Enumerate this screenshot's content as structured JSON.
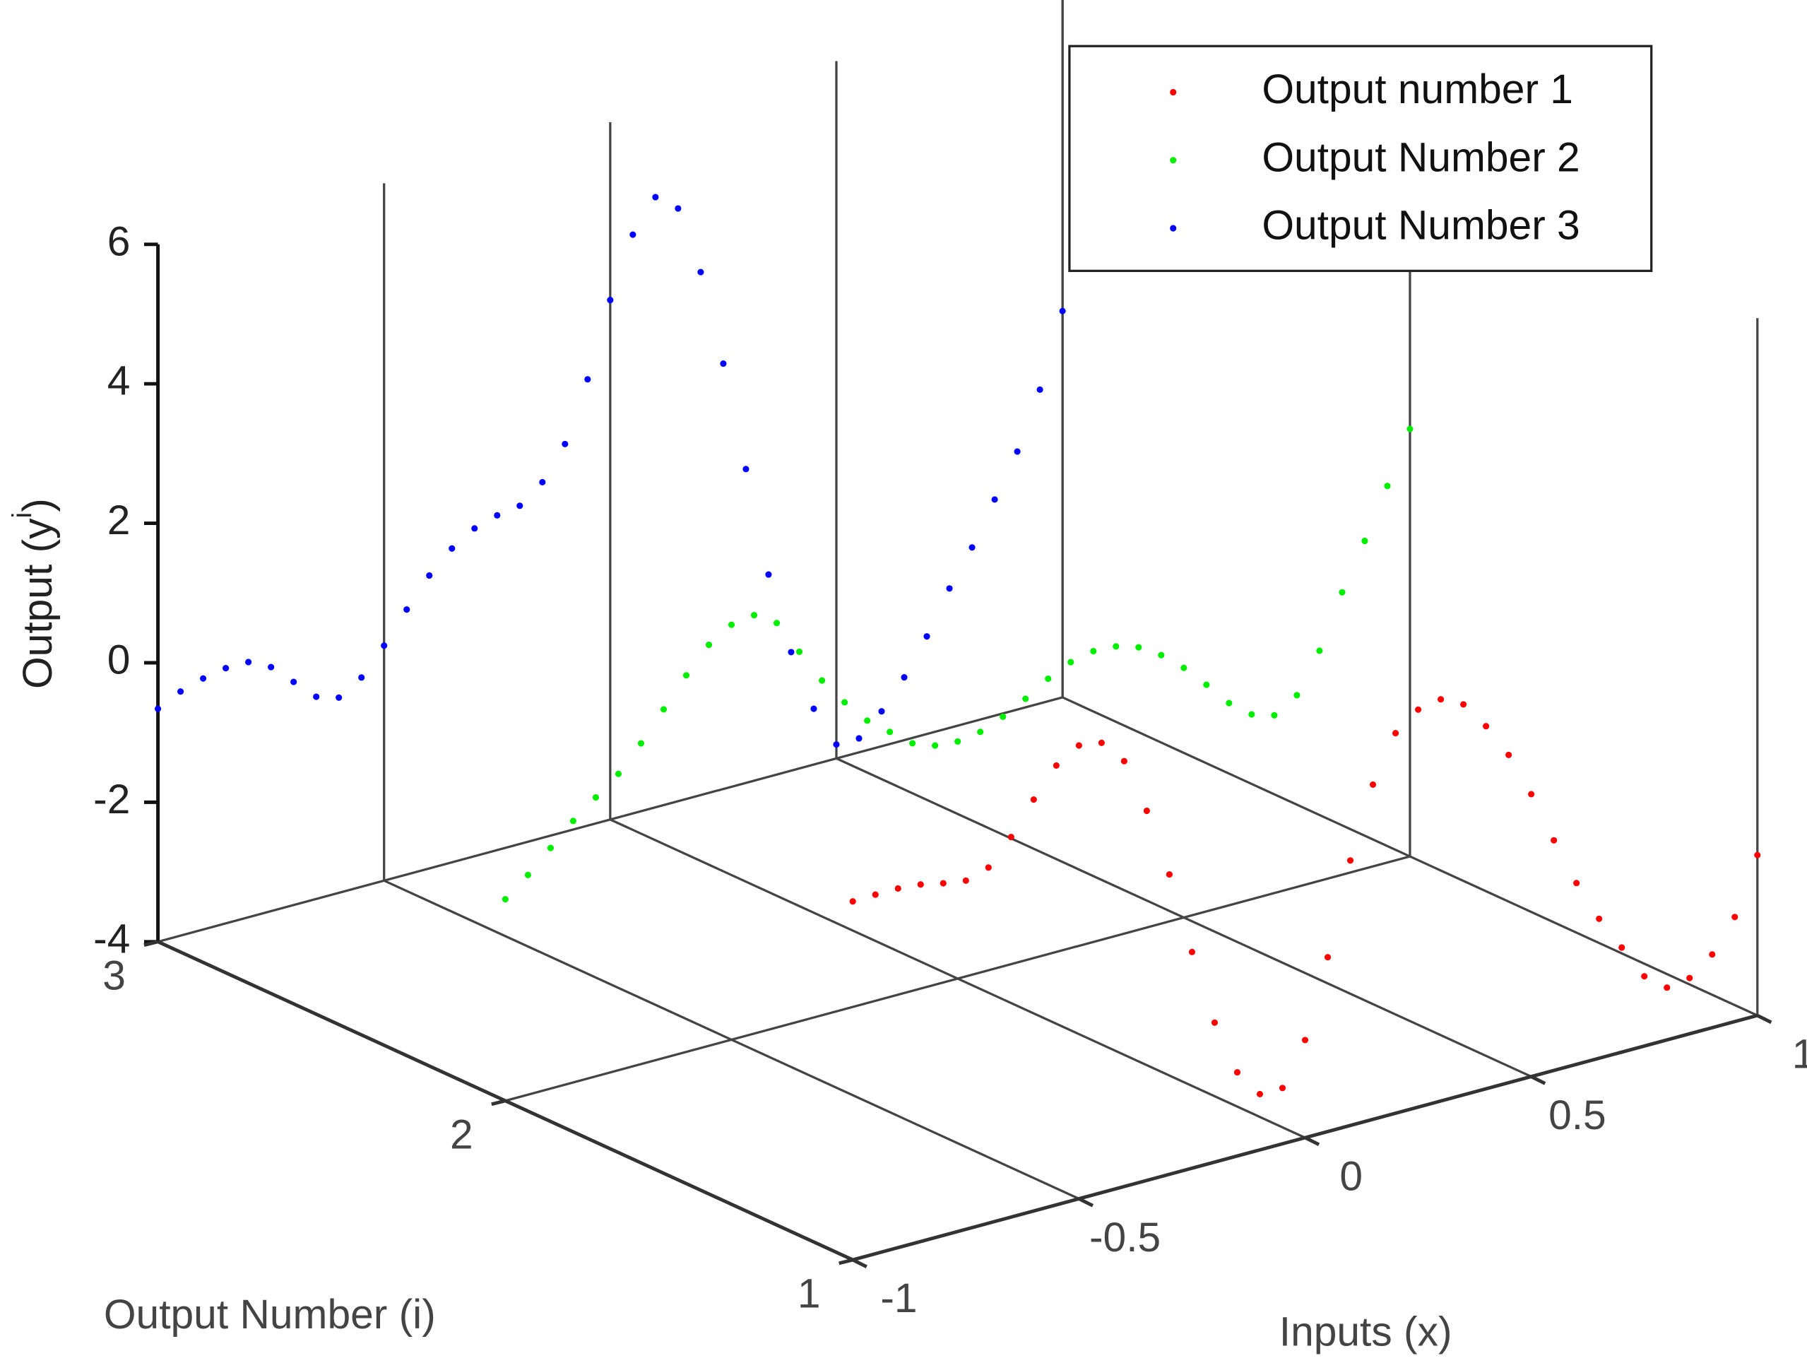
{
  "chart_data": {
    "type": "scatter3d",
    "xlabel": "Inputs (x)",
    "ilabel": "Output Number (i)",
    "zlabel": [
      "Output (y",
      "i",
      ")"
    ],
    "xlim": [
      -1,
      1
    ],
    "xticks": [
      -1,
      -0.5,
      0,
      0.5,
      1
    ],
    "ilim": [
      1,
      3
    ],
    "iticks": [
      1,
      2,
      3
    ],
    "zlim": [
      -4,
      6
    ],
    "zticks": [
      -4,
      -2,
      0,
      2,
      4,
      6
    ],
    "grid": true,
    "legend": "upper right",
    "x": [
      -1,
      -0.95,
      -0.9,
      -0.85,
      -0.8,
      -0.75,
      -0.7,
      -0.65,
      -0.6,
      -0.55,
      -0.5,
      -0.45,
      -0.4,
      -0.35,
      -0.3,
      -0.25,
      -0.2,
      -0.15,
      -0.1,
      -0.05,
      0,
      0.05,
      0.1,
      0.15,
      0.2,
      0.25,
      0.3,
      0.35,
      0.4,
      0.45,
      0.5,
      0.55,
      0.6,
      0.65,
      0.7,
      0.75,
      0.8,
      0.85,
      0.9,
      0.95,
      1
    ],
    "series": [
      {
        "name": "Output number 1",
        "color": "#ff0000",
        "i": 1,
        "values": [
          1.14,
          1.15,
          1.15,
          1.12,
          1.05,
          1.0,
          1.1,
          1.45,
          1.9,
          2.3,
          2.5,
          2.45,
          2.1,
          1.3,
          0.3,
          -0.9,
          -2.0,
          -2.8,
          -3.2,
          -3.2,
          -2.6,
          -1.5,
          -0.2,
          0.8,
          1.45,
          1.7,
          1.76,
          1.6,
          1.2,
          0.7,
          0.05,
          -0.7,
          -1.4,
          -2.0,
          -2.5,
          -3.0,
          -3.25,
          -3.2,
          -2.95,
          -2.5,
          -1.7
        ]
      },
      {
        "name": "Output Number 2",
        "color": "#00ee00",
        "i": 2,
        "values": [
          -1.11,
          -0.85,
          -0.55,
          -0.25,
          0.0,
          0.25,
          0.6,
          1.0,
          1.4,
          1.75,
          1.95,
          2.0,
          1.8,
          1.3,
          0.8,
          0.4,
          0.05,
          -0.2,
          -0.45,
          -0.57,
          -0.6,
          -0.55,
          -0.42,
          -0.25,
          -0.05,
          0.1,
          0.17,
          0.15,
          0.05,
          -0.15,
          -0.42,
          -0.75,
          -1.1,
          -1.35,
          -1.45,
          -1.25,
          -0.7,
          0.05,
          0.7,
          1.4,
          2.13
        ]
      },
      {
        "name": "Output Number 3",
        "color": "#0000ff",
        "i": 3,
        "values": [
          -0.66,
          -0.5,
          -0.4,
          -0.34,
          -0.34,
          -0.5,
          -0.8,
          -1.1,
          -1.2,
          -1.0,
          -0.63,
          -0.2,
          0.2,
          0.5,
          0.7,
          0.8,
          0.85,
          1.1,
          1.56,
          2.4,
          3.45,
          4.3,
          4.75,
          4.5,
          3.5,
          2.1,
          0.5,
          -1.1,
          -2.3,
          -3.2,
          -3.8,
          -3.8,
          -3.5,
          -3.1,
          -2.6,
          -2.0,
          -1.5,
          -0.9,
          -0.3,
          0.5,
          1.54
        ]
      }
    ]
  }
}
